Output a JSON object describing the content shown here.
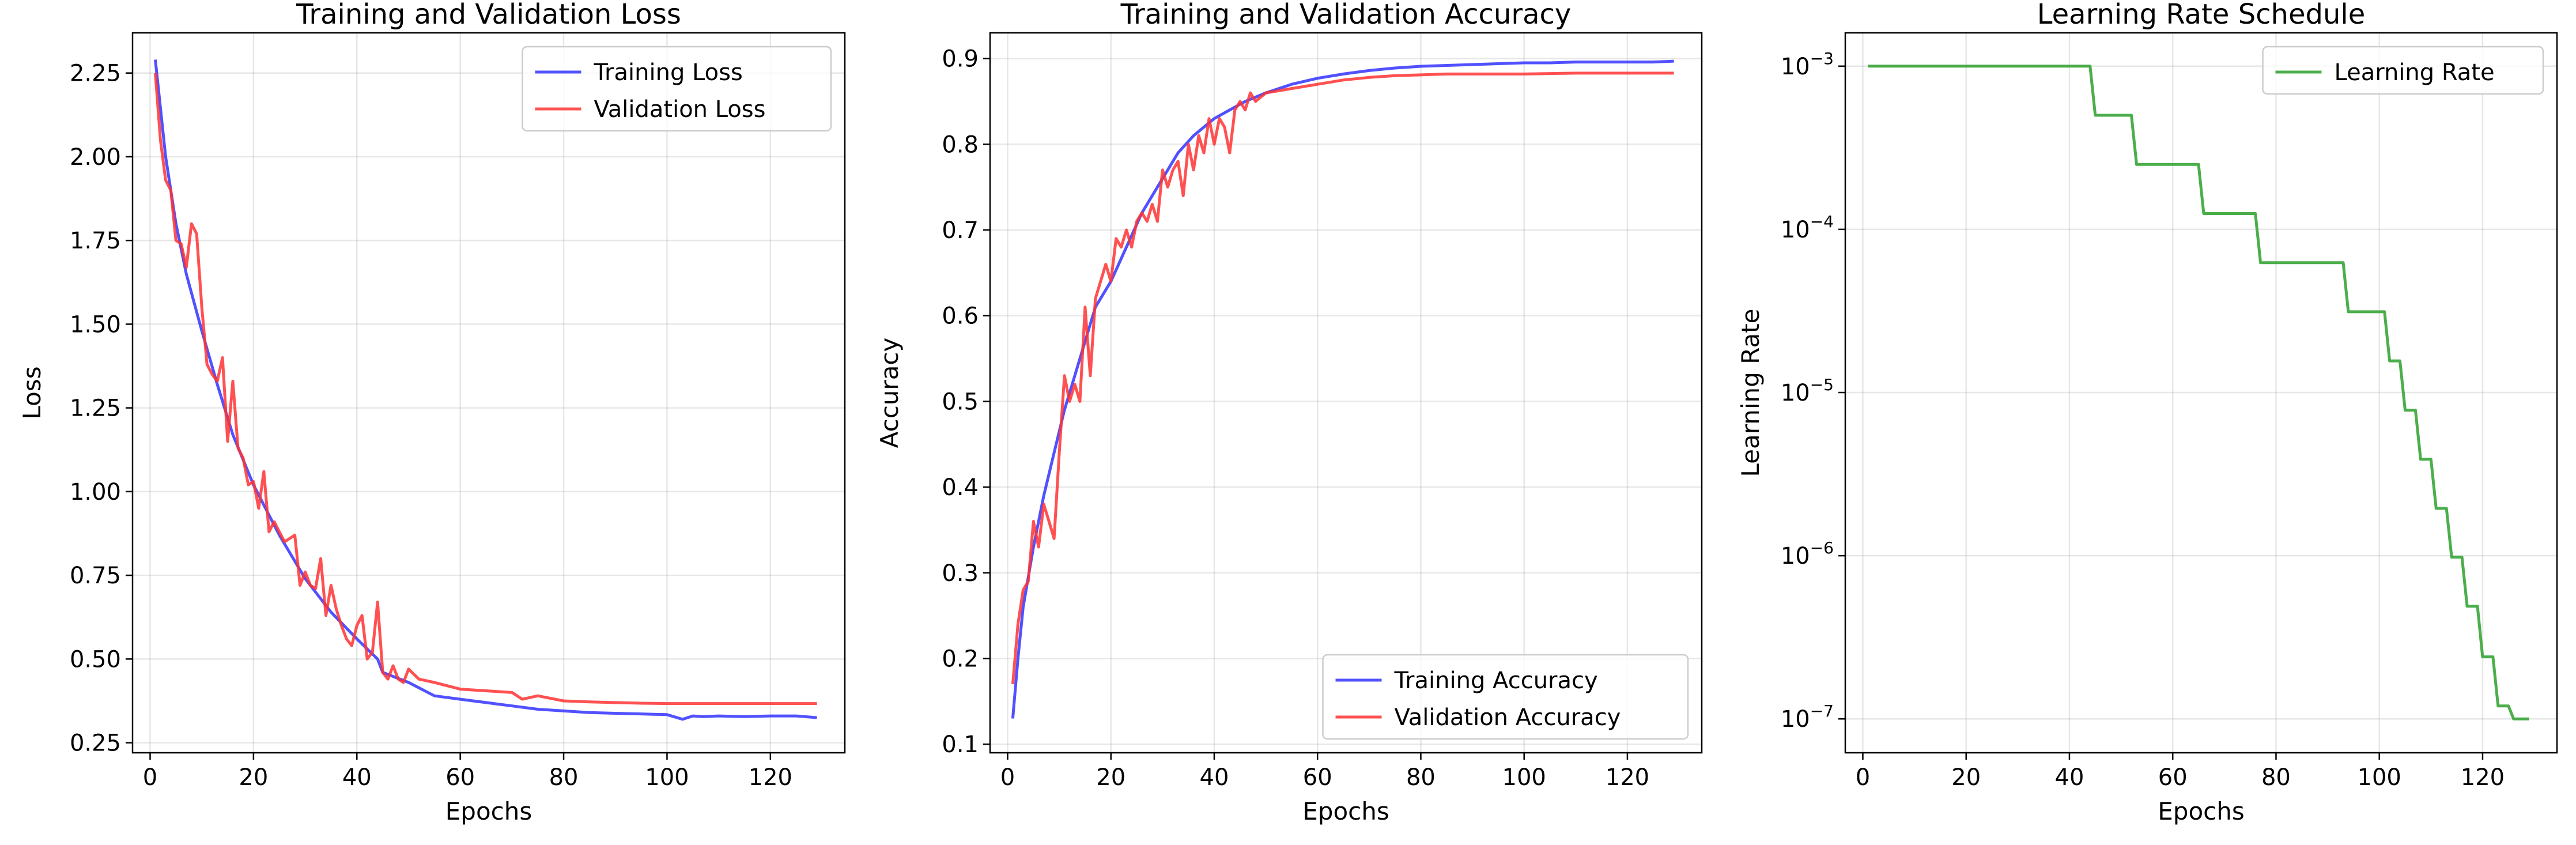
{
  "chart_data": [
    {
      "type": "line",
      "title": "Training and Validation Loss",
      "xlabel": "Epochs",
      "ylabel": "Loss",
      "xlim": [
        -3.4,
        134.4
      ],
      "ylim": [
        0.22,
        2.37
      ],
      "xticks": [
        0,
        20,
        40,
        60,
        80,
        100,
        120
      ],
      "yticks": [
        0.25,
        0.5,
        0.75,
        1.0,
        1.25,
        1.5,
        1.75,
        2.0,
        2.25
      ],
      "ytick_labels": [
        "0.25",
        "0.50",
        "0.75",
        "1.00",
        "1.25",
        "1.50",
        "1.75",
        "2.00",
        "2.25"
      ],
      "grid": true,
      "legend": "upper-right",
      "series": [
        {
          "name": "Training Loss",
          "color": "#3333ff",
          "x": [
            1,
            3,
            5,
            7,
            10,
            13,
            16,
            20,
            25,
            30,
            35,
            40,
            44,
            45,
            50,
            55,
            60,
            65,
            70,
            75,
            80,
            85,
            90,
            95,
            100,
            103,
            105,
            107,
            110,
            115,
            120,
            125,
            129
          ],
          "values": [
            2.29,
            2.0,
            1.8,
            1.65,
            1.48,
            1.32,
            1.17,
            1.02,
            0.87,
            0.74,
            0.64,
            0.56,
            0.5,
            0.46,
            0.43,
            0.39,
            0.38,
            0.37,
            0.36,
            0.35,
            0.345,
            0.34,
            0.338,
            0.336,
            0.334,
            0.32,
            0.33,
            0.328,
            0.33,
            0.328,
            0.33,
            0.33,
            0.325
          ]
        },
        {
          "name": "Validation Loss",
          "color": "#ff3333",
          "x": [
            1,
            2,
            3,
            4,
            5,
            6,
            7,
            8,
            9,
            10,
            11,
            12,
            13,
            14,
            15,
            16,
            17,
            18,
            19,
            20,
            21,
            22,
            23,
            24,
            25,
            26,
            27,
            28,
            29,
            30,
            31,
            32,
            33,
            34,
            35,
            36,
            37,
            38,
            39,
            40,
            41,
            42,
            43,
            44,
            45,
            46,
            47,
            48,
            49,
            50,
            52,
            55,
            60,
            65,
            70,
            72,
            75,
            80,
            85,
            90,
            95,
            100,
            110,
            120,
            129
          ],
          "values": [
            2.25,
            2.05,
            1.93,
            1.9,
            1.75,
            1.74,
            1.67,
            1.8,
            1.77,
            1.55,
            1.38,
            1.35,
            1.33,
            1.4,
            1.15,
            1.33,
            1.13,
            1.1,
            1.02,
            1.03,
            0.95,
            1.06,
            0.88,
            0.91,
            0.88,
            0.85,
            0.86,
            0.87,
            0.72,
            0.76,
            0.72,
            0.71,
            0.8,
            0.63,
            0.72,
            0.65,
            0.6,
            0.56,
            0.54,
            0.6,
            0.63,
            0.5,
            0.52,
            0.67,
            0.46,
            0.44,
            0.48,
            0.44,
            0.43,
            0.47,
            0.44,
            0.43,
            0.41,
            0.405,
            0.4,
            0.38,
            0.39,
            0.375,
            0.372,
            0.37,
            0.368,
            0.367,
            0.367,
            0.367,
            0.367
          ]
        }
      ]
    },
    {
      "type": "line",
      "title": "Training and Validation Accuracy",
      "xlabel": "Epochs",
      "ylabel": "Accuracy",
      "xlim": [
        -3.4,
        134.4
      ],
      "ylim": [
        0.09,
        0.93
      ],
      "xticks": [
        0,
        20,
        40,
        60,
        80,
        100,
        120
      ],
      "yticks": [
        0.1,
        0.2,
        0.3,
        0.4,
        0.5,
        0.6,
        0.7,
        0.8,
        0.9
      ],
      "ytick_labels": [
        "0.1",
        "0.2",
        "0.3",
        "0.4",
        "0.5",
        "0.6",
        "0.7",
        "0.8",
        "0.9"
      ],
      "grid": true,
      "legend": "lower-right",
      "series": [
        {
          "name": "Training Accuracy",
          "color": "#3333ff",
          "x": [
            1,
            2,
            3,
            5,
            7,
            9,
            11,
            13,
            15,
            17,
            20,
            23,
            26,
            30,
            33,
            36,
            40,
            43,
            46,
            50,
            55,
            60,
            65,
            70,
            75,
            80,
            85,
            90,
            95,
            100,
            105,
            110,
            115,
            120,
            125,
            129
          ],
          "values": [
            0.13,
            0.2,
            0.26,
            0.33,
            0.39,
            0.44,
            0.49,
            0.53,
            0.57,
            0.61,
            0.64,
            0.68,
            0.72,
            0.76,
            0.79,
            0.81,
            0.83,
            0.84,
            0.85,
            0.86,
            0.87,
            0.877,
            0.882,
            0.886,
            0.889,
            0.891,
            0.892,
            0.893,
            0.894,
            0.895,
            0.895,
            0.896,
            0.896,
            0.896,
            0.896,
            0.897
          ]
        },
        {
          "name": "Validation Accuracy",
          "color": "#ff3333",
          "x": [
            1,
            2,
            3,
            4,
            5,
            6,
            7,
            8,
            9,
            10,
            11,
            12,
            13,
            14,
            15,
            16,
            17,
            18,
            19,
            20,
            21,
            22,
            23,
            24,
            25,
            26,
            27,
            28,
            29,
            30,
            31,
            32,
            33,
            34,
            35,
            36,
            37,
            38,
            39,
            40,
            41,
            42,
            43,
            44,
            45,
            46,
            47,
            48,
            50,
            55,
            60,
            65,
            70,
            75,
            80,
            85,
            90,
            100,
            110,
            120,
            129
          ],
          "values": [
            0.17,
            0.24,
            0.28,
            0.29,
            0.36,
            0.33,
            0.38,
            0.36,
            0.34,
            0.44,
            0.53,
            0.5,
            0.52,
            0.5,
            0.61,
            0.53,
            0.62,
            0.64,
            0.66,
            0.64,
            0.69,
            0.68,
            0.7,
            0.68,
            0.71,
            0.72,
            0.71,
            0.73,
            0.71,
            0.77,
            0.75,
            0.77,
            0.78,
            0.74,
            0.8,
            0.77,
            0.81,
            0.79,
            0.83,
            0.8,
            0.83,
            0.82,
            0.79,
            0.84,
            0.85,
            0.84,
            0.86,
            0.85,
            0.86,
            0.865,
            0.87,
            0.875,
            0.878,
            0.88,
            0.881,
            0.882,
            0.882,
            0.882,
            0.883,
            0.883,
            0.883
          ]
        }
      ]
    },
    {
      "type": "line",
      "title": "Learning Rate Schedule",
      "xlabel": "Epochs",
      "ylabel": "Learning Rate",
      "xlim": [
        -3.4,
        134.4
      ],
      "ylim": [
        6.2e-08,
        0.0016
      ],
      "yscale": "log",
      "xticks": [
        0,
        20,
        40,
        60,
        80,
        100,
        120
      ],
      "yticks": [
        1e-07,
        1e-06,
        1e-05,
        0.0001,
        0.001
      ],
      "ytick_labels": [
        {
          "base": "10",
          "exp": "−7"
        },
        {
          "base": "10",
          "exp": "−6"
        },
        {
          "base": "10",
          "exp": "−5"
        },
        {
          "base": "10",
          "exp": "−4"
        },
        {
          "base": "10",
          "exp": "−3"
        }
      ],
      "grid": true,
      "legend": "upper-right",
      "series": [
        {
          "name": "Learning Rate",
          "color": "#2ca02c",
          "x": [
            1,
            44,
            45,
            52,
            53,
            65,
            66,
            76,
            77,
            93,
            94,
            101,
            102,
            104,
            105,
            107,
            108,
            110,
            111,
            113,
            114,
            116,
            117,
            119,
            120,
            122,
            123,
            125,
            126,
            129
          ],
          "values": [
            0.001,
            0.001,
            0.0005,
            0.0005,
            0.00025,
            0.00025,
            0.000125,
            0.000125,
            6.25e-05,
            6.25e-05,
            3.125e-05,
            3.125e-05,
            1.5625e-05,
            1.5625e-05,
            7.8e-06,
            7.8e-06,
            3.9e-06,
            3.9e-06,
            1.95e-06,
            1.95e-06,
            9.8e-07,
            9.8e-07,
            4.9e-07,
            4.9e-07,
            2.4e-07,
            2.4e-07,
            1.2e-07,
            1.2e-07,
            1e-07,
            1e-07
          ]
        }
      ]
    }
  ]
}
